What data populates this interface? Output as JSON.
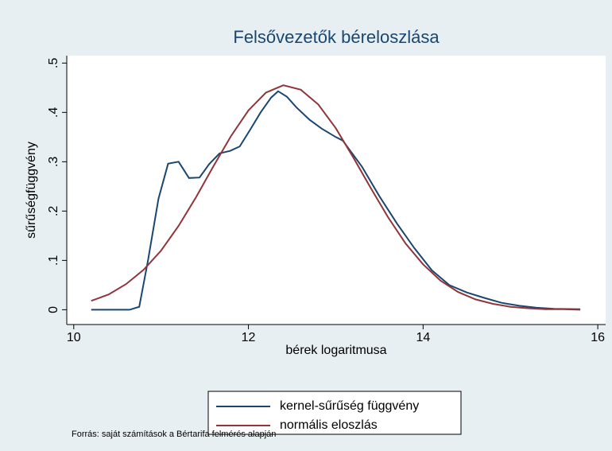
{
  "chart_data": {
    "type": "line",
    "title": "Felsővezetők béreloszlása",
    "x_label": "bérek logaritmusa",
    "y_label": "sűrűségfüggvény",
    "source": "Forrás: saját számítások a Bértarifa felmérés alapján",
    "xlim": [
      9.92,
      16.09
    ],
    "xticks": [
      10,
      12,
      14,
      16
    ],
    "ylim": [
      -0.03,
      0.515
    ],
    "yticks": [
      0,
      {
        "value": 0.1,
        "label": ".1"
      },
      {
        "value": 0.2,
        "label": ".2"
      },
      {
        "value": 0.3,
        "label": ".3"
      },
      {
        "value": 0.4,
        "label": ".4"
      },
      {
        "value": 0.5,
        "label": ".5"
      }
    ],
    "grid": false,
    "series": [
      {
        "name": "kernel-sűrűség függvény",
        "color": "#1a476f",
        "x": [
          10.2,
          10.4,
          10.64,
          10.75,
          10.85,
          10.97,
          11.08,
          11.2,
          11.32,
          11.44,
          11.55,
          11.67,
          11.79,
          11.9,
          12.02,
          12.14,
          12.26,
          12.34,
          12.44,
          12.55,
          12.7,
          12.84,
          13.0,
          13.08,
          13.3,
          13.5,
          13.7,
          13.9,
          14.1,
          14.3,
          14.5,
          14.7,
          14.9,
          15.1,
          15.3,
          15.5,
          15.8
        ],
        "values": [
          0,
          0,
          0,
          0.006,
          0.1,
          0.225,
          0.296,
          0.3,
          0.267,
          0.268,
          0.295,
          0.317,
          0.322,
          0.331,
          0.365,
          0.4,
          0.43,
          0.443,
          0.432,
          0.41,
          0.385,
          0.367,
          0.35,
          0.343,
          0.29,
          0.23,
          0.175,
          0.125,
          0.08,
          0.05,
          0.035,
          0.024,
          0.014,
          0.008,
          0.004,
          0.002,
          0.001
        ]
      },
      {
        "name": "normális eloszlás",
        "color": "#90353b",
        "x": [
          10.2,
          10.4,
          10.6,
          10.8,
          11.0,
          11.2,
          11.4,
          11.6,
          11.8,
          12.0,
          12.2,
          12.4,
          12.6,
          12.8,
          13.0,
          13.2,
          13.4,
          13.6,
          13.8,
          14.0,
          14.2,
          14.4,
          14.6,
          14.8,
          15.0,
          15.2,
          15.4,
          15.6,
          15.8
        ],
        "values": [
          0.018,
          0.031,
          0.052,
          0.081,
          0.12,
          0.17,
          0.228,
          0.291,
          0.352,
          0.404,
          0.44,
          0.455,
          0.446,
          0.416,
          0.368,
          0.309,
          0.247,
          0.187,
          0.134,
          0.092,
          0.059,
          0.036,
          0.021,
          0.012,
          0.006,
          0.003,
          0.001,
          0.001,
          0
        ]
      }
    ]
  }
}
